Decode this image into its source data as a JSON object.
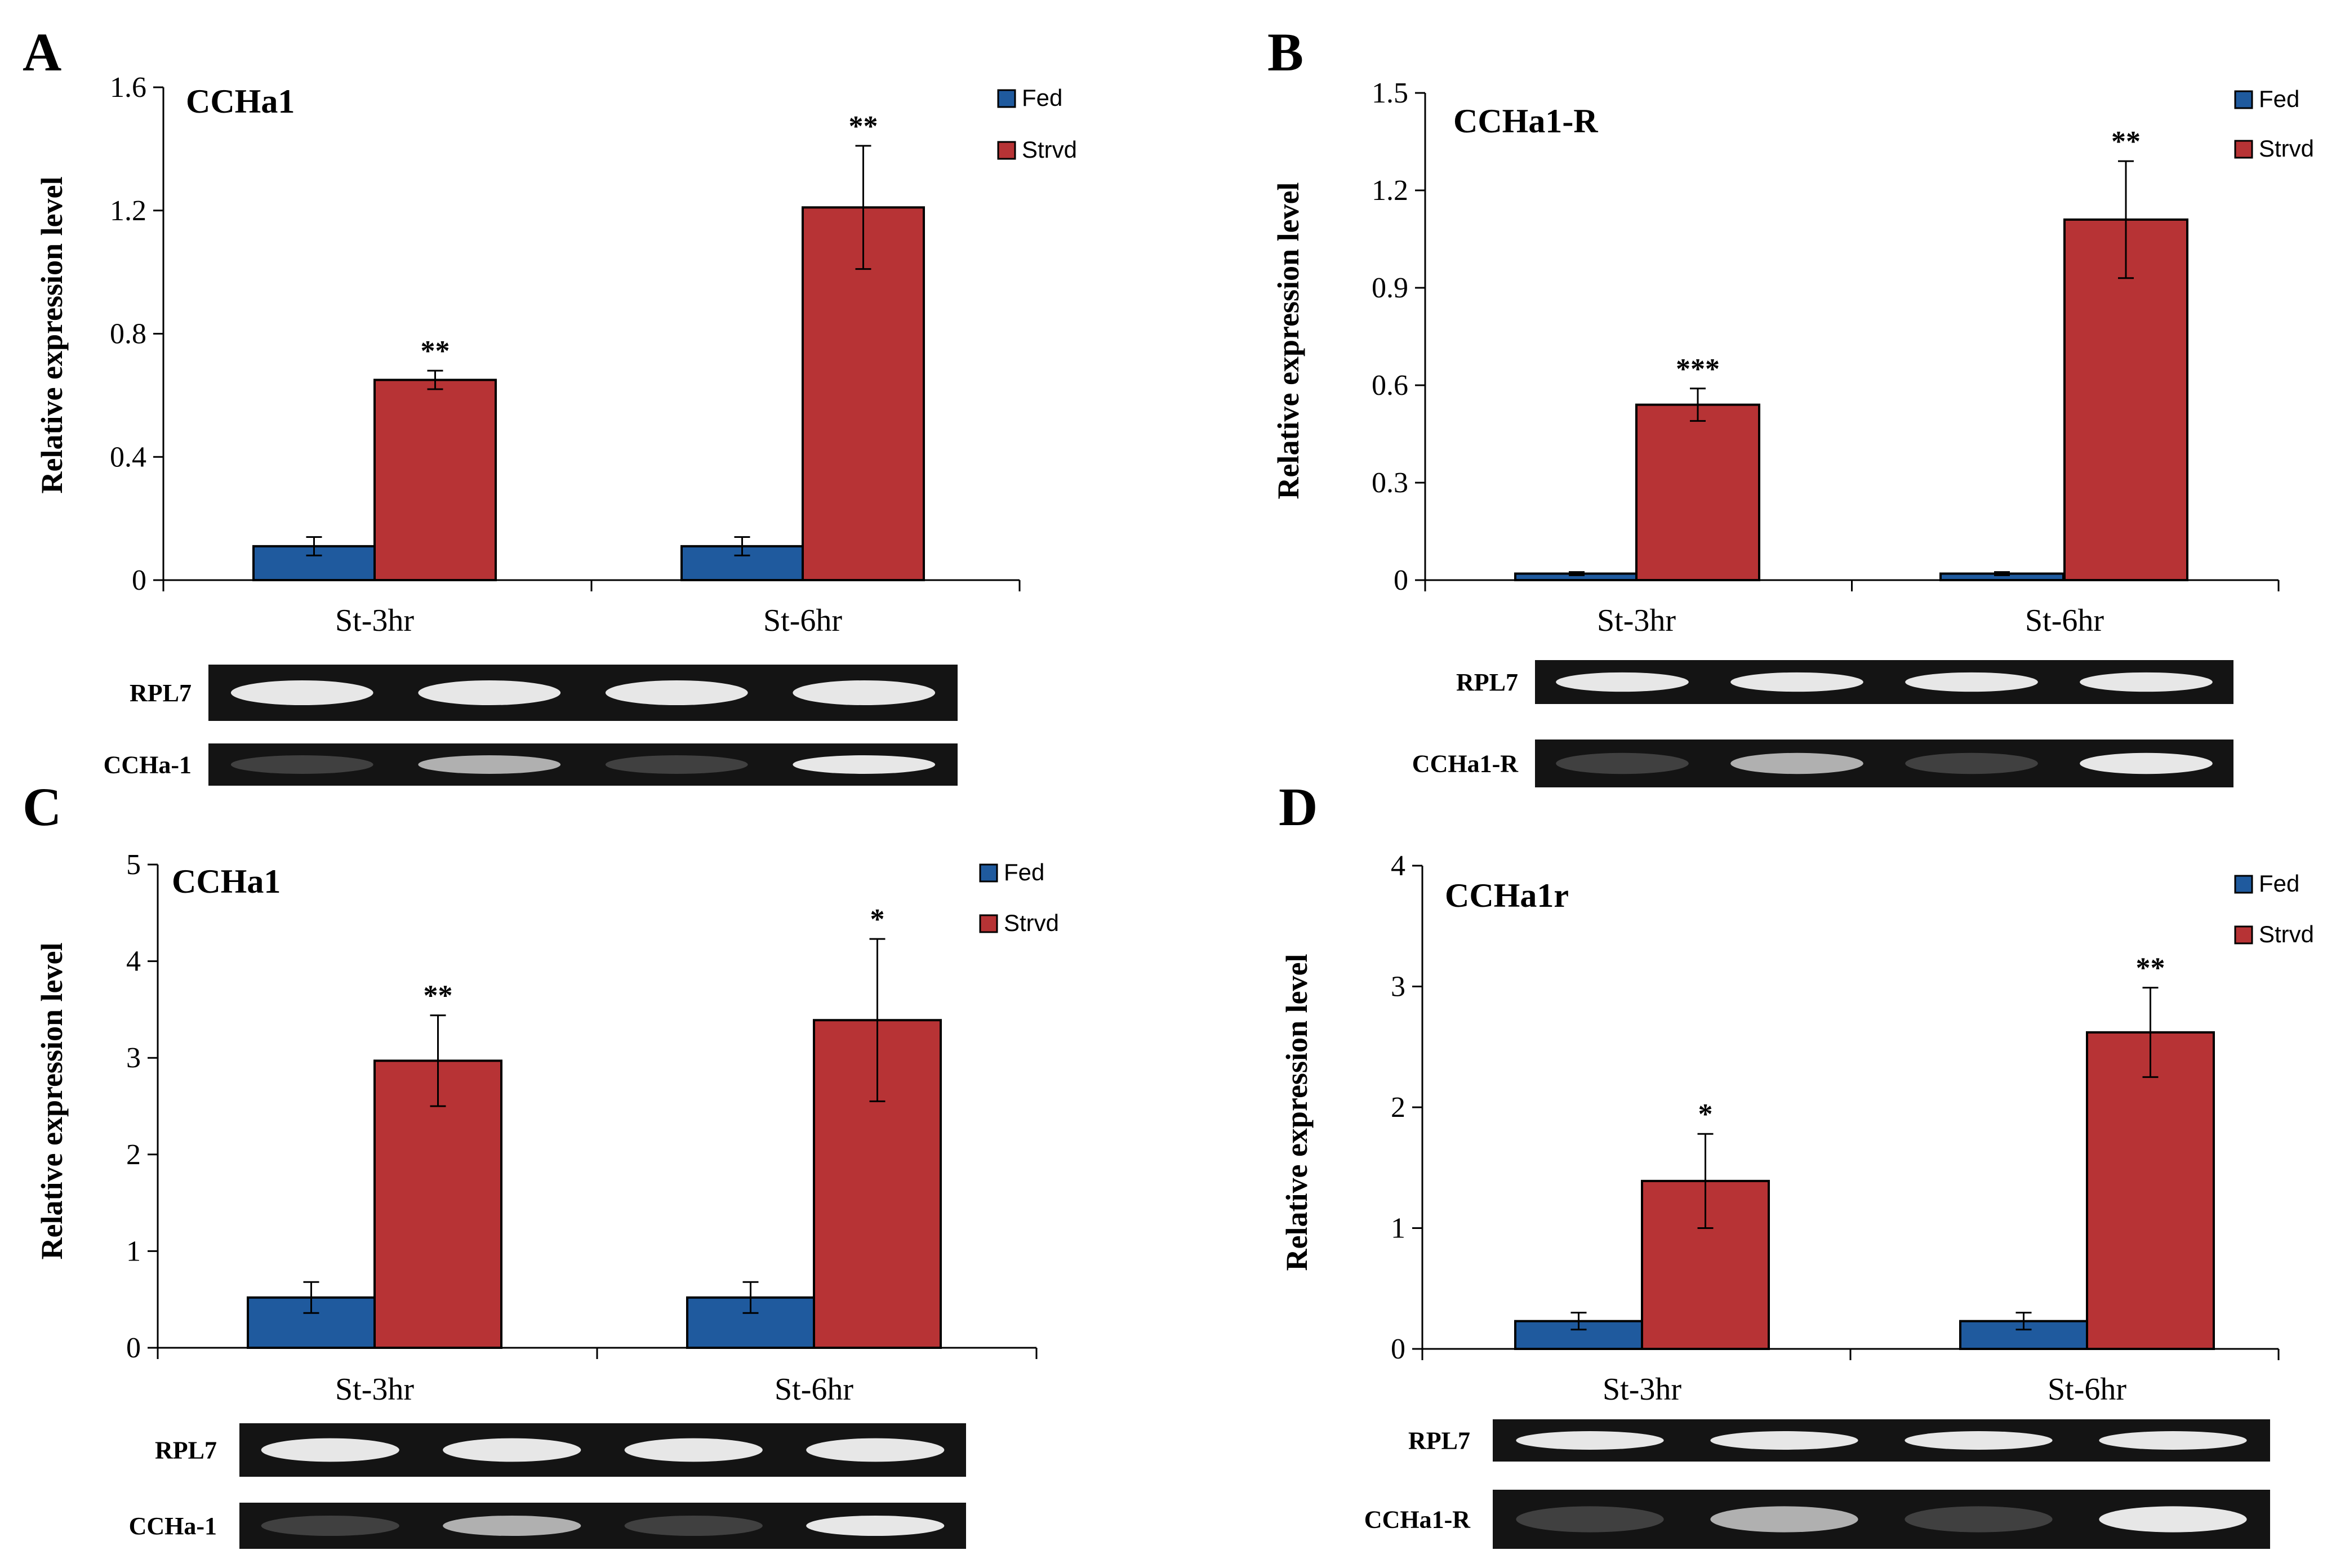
{
  "colors": {
    "fed": "#1f5a9e",
    "strvd": "#b73335",
    "gel_bg": "#141414",
    "band": "#f2f2f2"
  },
  "chart_data": [
    {
      "panel": "A",
      "type": "bar",
      "title": "CCHa1",
      "ylabel": "Relative expression level",
      "xlabel": "",
      "ylim": [
        0,
        1.6
      ],
      "yticks": [
        "0",
        "0.4",
        "0.8",
        "1.2",
        "1.6"
      ],
      "categories": [
        "St-3hr",
        "St-6hr"
      ],
      "legend": [
        "Fed",
        "Strvd"
      ],
      "series": [
        {
          "name": "Fed",
          "values": [
            0.11,
            0.11
          ],
          "errors": [
            0.03,
            0.03
          ]
        },
        {
          "name": "Strvd",
          "values": [
            0.65,
            1.21
          ],
          "errors": [
            0.03,
            0.2
          ]
        }
      ],
      "significance": [
        "**",
        "**"
      ],
      "gel": {
        "bands": [
          "RPL7",
          "CCHa-1"
        ]
      }
    },
    {
      "panel": "B",
      "type": "bar",
      "title": "CCHa1-R",
      "ylabel": "Relative expression level",
      "xlabel": "",
      "ylim": [
        0,
        1.5
      ],
      "yticks": [
        "0",
        "0.3",
        "0.6",
        "0.9",
        "1.2",
        "1.5"
      ],
      "categories": [
        "St-3hr",
        "St-6hr"
      ],
      "legend": [
        "Fed",
        "Strvd"
      ],
      "series": [
        {
          "name": "Fed",
          "values": [
            0.02,
            0.02
          ],
          "errors": [
            0.005,
            0.005
          ]
        },
        {
          "name": "Strvd",
          "values": [
            0.54,
            1.11
          ],
          "errors": [
            0.05,
            0.18
          ]
        }
      ],
      "significance": [
        "***",
        "**"
      ],
      "gel": {
        "bands": [
          "RPL7",
          "CCHa1-R"
        ]
      }
    },
    {
      "panel": "C",
      "type": "bar",
      "title": "CCHa1",
      "ylabel": "Relative expression level",
      "xlabel": "",
      "ylim": [
        0,
        5
      ],
      "yticks": [
        "0",
        "1",
        "2",
        "3",
        "4",
        "5"
      ],
      "categories": [
        "St-3hr",
        "St-6hr"
      ],
      "legend": [
        "Fed",
        "Strvd"
      ],
      "series": [
        {
          "name": "Fed",
          "values": [
            0.52,
            0.52
          ],
          "errors": [
            0.16,
            0.16
          ]
        },
        {
          "name": "Strvd",
          "values": [
            2.97,
            3.39
          ],
          "errors": [
            0.47,
            0.84
          ]
        }
      ],
      "significance": [
        "**",
        "*"
      ],
      "gel": {
        "bands": [
          "RPL7",
          "CCHa-1"
        ]
      }
    },
    {
      "panel": "D",
      "type": "bar",
      "title": "CCHa1r",
      "ylabel": "Relative expression level",
      "xlabel": "",
      "ylim": [
        0,
        4
      ],
      "yticks": [
        "0",
        "1",
        "2",
        "3",
        "4"
      ],
      "categories": [
        "St-3hr",
        "St-6hr"
      ],
      "legend": [
        "Fed",
        "Strvd"
      ],
      "series": [
        {
          "name": "Fed",
          "values": [
            0.23,
            0.23
          ],
          "errors": [
            0.07,
            0.07
          ]
        },
        {
          "name": "Strvd",
          "values": [
            1.39,
            2.62
          ],
          "errors": [
            0.39,
            0.37
          ]
        }
      ],
      "significance": [
        "*",
        "**"
      ],
      "gel": {
        "bands": [
          "RPL7",
          "CCHa1-R"
        ]
      }
    }
  ]
}
